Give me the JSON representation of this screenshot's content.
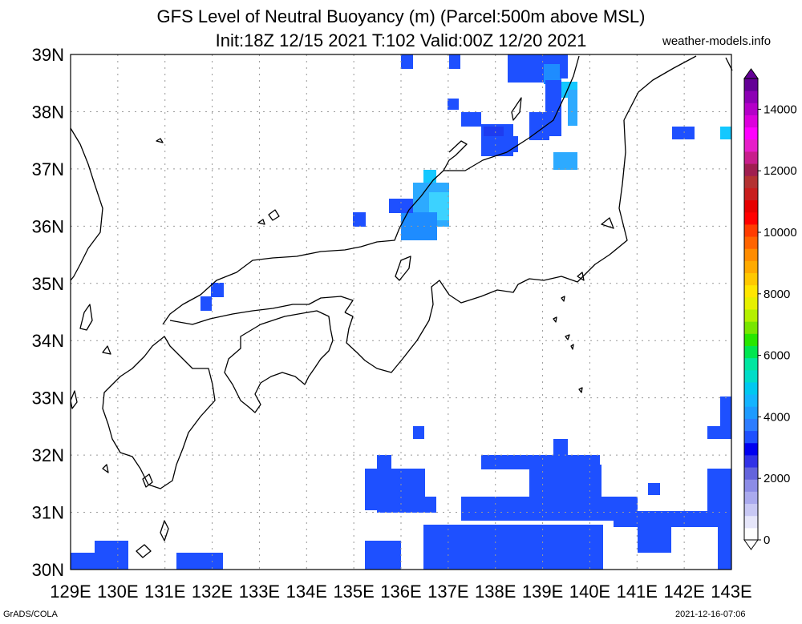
{
  "title": {
    "line1": "GFS Level of Neutral Buoyancy (m) (Parcel:500m above MSL)",
    "line2": "Init:18Z 12/15 2021 T:102 Valid:00Z 12/20 2021"
  },
  "credits": {
    "site": "weather-models.info",
    "software": "GrADS/COLA",
    "timestamp": "2021-12-16-07:06"
  },
  "axes": {
    "lon_range": [
      129,
      143
    ],
    "lat_range": [
      30,
      39
    ],
    "lon_labels": [
      "129E",
      "130E",
      "131E",
      "132E",
      "133E",
      "134E",
      "135E",
      "136E",
      "137E",
      "138E",
      "139E",
      "140E",
      "141E",
      "142E",
      "143E"
    ],
    "lat_labels": [
      "30N",
      "31N",
      "32N",
      "33N",
      "34N",
      "35N",
      "36N",
      "37N",
      "38N",
      "39N"
    ],
    "grid": "dotted"
  },
  "colorbar": {
    "labels": [
      "0",
      "2000",
      "4000",
      "6000",
      "8000",
      "10000",
      "12000",
      "14000"
    ],
    "colors": [
      "#ffffff",
      "#e6e6fa",
      "#c8c8f4",
      "#aaaaee",
      "#8c8ce6",
      "#6464dc",
      "#3232e6",
      "#0000f0",
      "#1e50ff",
      "#2d7dff",
      "#1e9bff",
      "#14b4ff",
      "#00c8f0",
      "#00dcc8",
      "#00e6a0",
      "#00e650",
      "#28e600",
      "#78e600",
      "#b4f000",
      "#e6f000",
      "#ffe600",
      "#ffc800",
      "#ffaa00",
      "#ff8c00",
      "#ff6400",
      "#ff3c00",
      "#ff0000",
      "#e60000",
      "#c81e1e",
      "#b43232",
      "#a01e50",
      "#c81e8c",
      "#e61ec8",
      "#ff00ff",
      "#dc00dc",
      "#b400c8",
      "#8c00b4",
      "#640096"
    ]
  },
  "legend_colors": {
    "blue": "#1e50ff",
    "mid": "#1e8cff",
    "light": "#2daaff",
    "cyan": "#14c8ff",
    "cyanlite": "#3cd2ff",
    "dark": "#1e3cf0"
  }
}
